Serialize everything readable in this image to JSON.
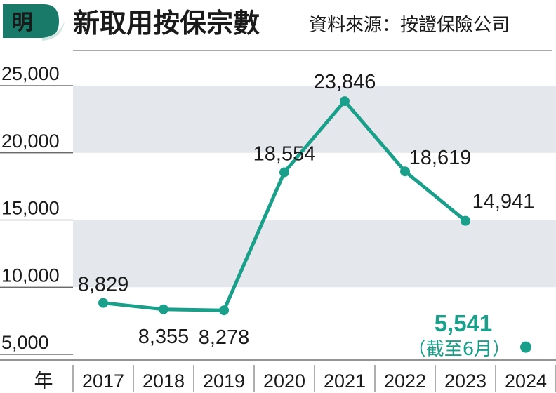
{
  "header": {
    "logo_char": "明",
    "title": "新取用按保宗數",
    "source": "資料來源：按證保險公司"
  },
  "colors": {
    "accent": "#1a9f8a",
    "band": "#e4e8ec",
    "logo_dark": "#1a7a6a",
    "logo_light": "#cfe6e0",
    "axis": "#555555"
  },
  "chart_data": {
    "type": "line",
    "title": "新取用按保宗數",
    "source": "資料來源：按證保險公司",
    "xlabel": "年",
    "ylabel": "",
    "ylim": [
      5000,
      25000
    ],
    "yticks": [
      5000,
      10000,
      15000,
      20000,
      25000
    ],
    "ytick_labels": [
      "5,000",
      "10,000",
      "15,000",
      "20,000",
      "25,000"
    ],
    "categories": [
      "2017",
      "2018",
      "2019",
      "2020",
      "2021",
      "2022",
      "2023",
      "2024"
    ],
    "series": [
      {
        "values": [
          8829,
          8355,
          8278,
          18554,
          23846,
          18619,
          14941,
          null
        ],
        "labels": [
          "8,829",
          "8,355",
          "8,278",
          "18,554",
          "23,846",
          "18,619",
          "14,941",
          ""
        ]
      }
    ],
    "highlight": {
      "category": "2024",
      "value": 5541,
      "label": "5,541",
      "note": "（截至6月）"
    },
    "grid": "alternating-bands",
    "legend": "none"
  }
}
